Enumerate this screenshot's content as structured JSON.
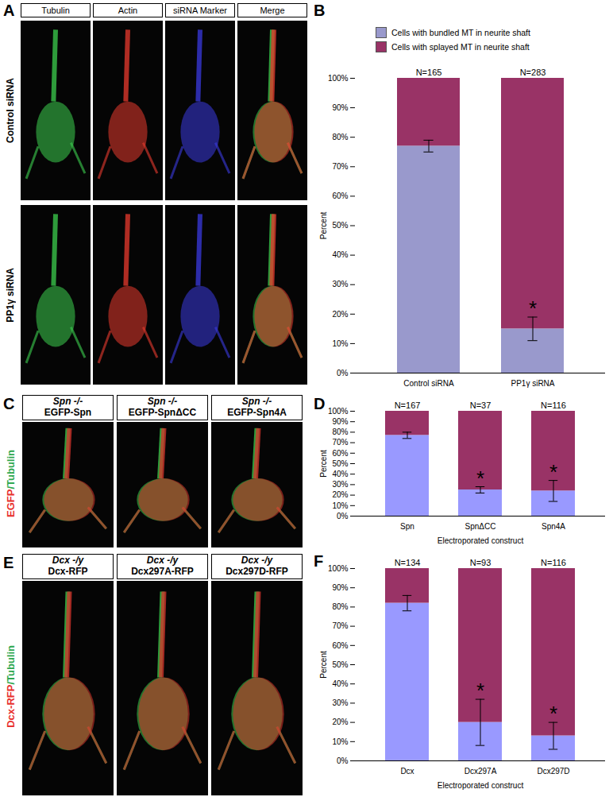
{
  "image_panels": [
    {
      "panel_label": "A",
      "column_headers": [
        "Tubulin",
        "Actin",
        "siRNA Marker",
        "Merge"
      ],
      "row_labels": [
        "Control siRNA",
        "PP1γ siRNA"
      ]
    },
    {
      "panel_label": "C",
      "side_label": [
        {
          "text": "EGFP",
          "color": "#e8322e"
        },
        {
          "text": "/Tubulin",
          "color": "#2fa84f"
        }
      ],
      "columns": [
        {
          "genotype": "Spn -/-",
          "construct": "EGFP-Spn"
        },
        {
          "genotype": "Spn -/-",
          "construct": "EGFP-SpnΔCC"
        },
        {
          "genotype": "Spn -/-",
          "construct": "EGFP-Spn4A"
        }
      ]
    },
    {
      "panel_label": "E",
      "side_label": [
        {
          "text": "Dcx-RFP",
          "color": "#e8322e"
        },
        {
          "text": "/Tubulin",
          "color": "#2fa84f"
        }
      ],
      "columns": [
        {
          "genotype": "Dcx -/y",
          "construct": "Dcx-RFP"
        },
        {
          "genotype": "Dcx -/y",
          "construct": "Dcx297A-RFP"
        },
        {
          "genotype": "Dcx -/y",
          "construct": "Dcx297D-RFP"
        }
      ]
    }
  ],
  "chart_data": [
    {
      "type": "bar",
      "panel_label": "B",
      "stacked": true,
      "legend": "top",
      "categories": [
        "Control siRNA",
        "PP1γ siRNA"
      ],
      "series": [
        {
          "name": "Cells with bundled MT in neurite shaft",
          "color": "#9999cc",
          "values": [
            77,
            15
          ],
          "errors": [
            2,
            4
          ]
        },
        {
          "name": "Cells with splayed MT in neurite shaft",
          "color": "#993366",
          "values": [
            23,
            85
          ]
        }
      ],
      "n_labels": [
        "N=165",
        "N=283"
      ],
      "annotations": [
        {
          "category": "PP1γ siRNA",
          "text": "*"
        }
      ],
      "ylabel": "Percent",
      "ylim": [
        0,
        100
      ],
      "yticks": [
        {
          "value": 0,
          "label": "0%"
        },
        {
          "value": 10,
          "label": "10%"
        },
        {
          "value": 20,
          "label": "20%"
        },
        {
          "value": 30,
          "label": "30%"
        },
        {
          "value": 40,
          "label": "40%"
        },
        {
          "value": 50,
          "label": "50%"
        },
        {
          "value": 60,
          "label": "60%"
        },
        {
          "value": 70,
          "label": "70%"
        },
        {
          "value": 80,
          "label": "80%"
        },
        {
          "value": 90,
          "label": "90%"
        },
        {
          "value": 100,
          "label": "100%"
        }
      ]
    },
    {
      "type": "bar",
      "panel_label": "D",
      "stacked": true,
      "categories": [
        "Spn",
        "SpnΔCC",
        "Spn4A"
      ],
      "series": [
        {
          "color": "#9999ff",
          "values": [
            77,
            25,
            24
          ],
          "errors": [
            3,
            3,
            10
          ]
        },
        {
          "color": "#993366",
          "values": [
            23,
            75,
            76
          ]
        }
      ],
      "n_labels": [
        "N=167",
        "N=37",
        "N=116"
      ],
      "annotations": [
        {
          "category": "SpnΔCC",
          "text": "*"
        },
        {
          "category": "Spn4A",
          "text": "*"
        }
      ],
      "xlabel": "Electroporated construct",
      "ylabel": "Percent",
      "ylim": [
        0,
        100
      ],
      "yticks": [
        {
          "value": 0,
          "label": "0%"
        },
        {
          "value": 10,
          "label": "10%"
        },
        {
          "value": 20,
          "label": "20%"
        },
        {
          "value": 30,
          "label": "30%"
        },
        {
          "value": 40,
          "label": "40%"
        },
        {
          "value": 50,
          "label": "50%"
        },
        {
          "value": 60,
          "label": "60%"
        },
        {
          "value": 70,
          "label": "70%"
        },
        {
          "value": 80,
          "label": "80%"
        },
        {
          "value": 90,
          "label": "90%"
        },
        {
          "value": 100,
          "label": "100%"
        }
      ]
    },
    {
      "type": "bar",
      "panel_label": "F",
      "stacked": true,
      "categories": [
        "Dcx",
        "Dcx297A",
        "Dcx297D"
      ],
      "series": [
        {
          "color": "#9999ff",
          "values": [
            82,
            20,
            13
          ],
          "errors": [
            4,
            12,
            7
          ]
        },
        {
          "color": "#993366",
          "values": [
            18,
            80,
            87
          ]
        }
      ],
      "n_labels": [
        "N=134",
        "N=93",
        "N=116"
      ],
      "annotations": [
        {
          "category": "Dcx297A",
          "text": "*"
        },
        {
          "category": "Dcx297D",
          "text": "*"
        }
      ],
      "xlabel": "Electroporated construct",
      "ylabel": "Percent",
      "ylim": [
        0,
        100
      ],
      "yticks": [
        {
          "value": 0,
          "label": "0%"
        },
        {
          "value": 10,
          "label": "10%"
        },
        {
          "value": 20,
          "label": "20%"
        },
        {
          "value": 30,
          "label": "30%"
        },
        {
          "value": 40,
          "label": "40%"
        },
        {
          "value": 50,
          "label": "50%"
        },
        {
          "value": 60,
          "label": "60%"
        },
        {
          "value": 70,
          "label": "70%"
        },
        {
          "value": 80,
          "label": "80%"
        },
        {
          "value": 90,
          "label": "90%"
        },
        {
          "value": 100,
          "label": "100%"
        }
      ]
    }
  ]
}
